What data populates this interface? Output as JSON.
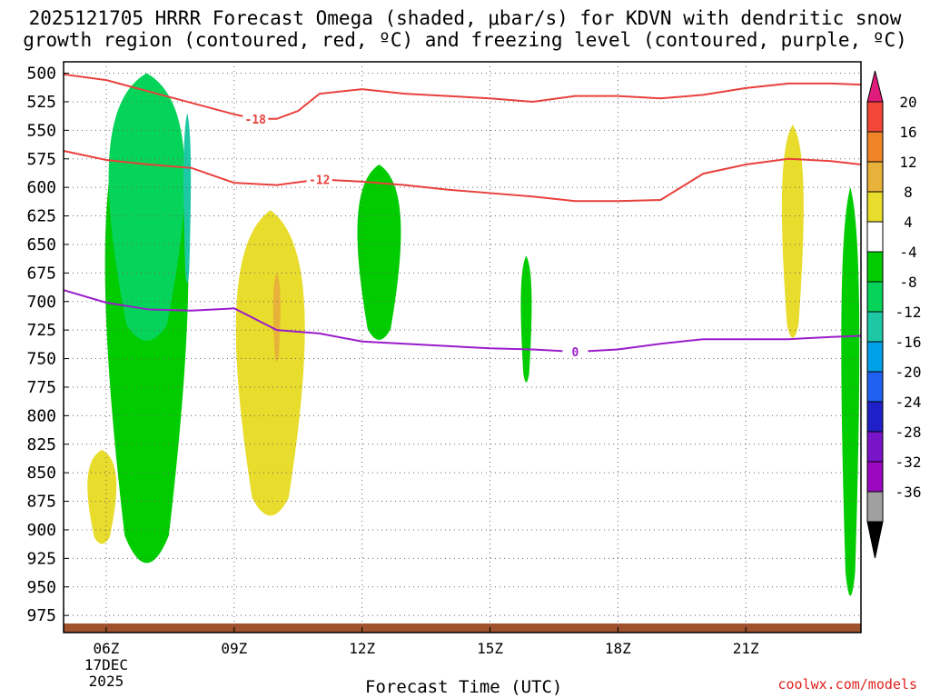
{
  "title_line1": "2025121705 HRRR Forecast Omega (shaded, μbar/s) for KDVN with dendritic snow",
  "title_line2": "growth region (contoured, red, ºC) and freezing level (contoured, purple, ºC)",
  "credit": "coolwx.com/models",
  "chart_data": {
    "type": "heatmap",
    "title": "2025121705 HRRR Forecast Omega (shaded, μbar/s) for KDVN with dendritic snow growth region (contoured, red, ºC) and freezing level (contoured, purple, ºC)",
    "xlabel": "Forecast Time (UTC)",
    "ylabel": "",
    "xlim_hours": [
      5,
      23.7
    ],
    "ylim_hPa": [
      990,
      490
    ],
    "x_ticks": [
      {
        "hour": 6,
        "label": "06Z",
        "sub1": "17DEC",
        "sub2": "2025"
      },
      {
        "hour": 9,
        "label": "09Z"
      },
      {
        "hour": 12,
        "label": "12Z"
      },
      {
        "hour": 15,
        "label": "15Z"
      },
      {
        "hour": 18,
        "label": "18Z"
      },
      {
        "hour": 21,
        "label": "21Z"
      }
    ],
    "y_ticks": [
      500,
      525,
      550,
      575,
      600,
      625,
      650,
      675,
      700,
      725,
      750,
      775,
      800,
      825,
      850,
      875,
      900,
      925,
      950,
      975
    ],
    "grid": true,
    "colorbar": {
      "ticks": [
        20,
        16,
        12,
        8,
        4,
        -4,
        -8,
        -12,
        -16,
        -20,
        -24,
        -28,
        -32,
        -36
      ],
      "colors": [
        "#df1c7c",
        "#f24638",
        "#ef8426",
        "#e8b23a",
        "#e8dc2c",
        "#ffffff",
        "#00cc00",
        "#06d45a",
        "#1ec8a6",
        "#00a0e8",
        "#2060f0",
        "#2020c8",
        "#7a14c8",
        "#9a08c0",
        "#a0a0a0",
        "#000000"
      ]
    },
    "red_contours": [
      {
        "label": "-18",
        "x": [
          5,
          6,
          7,
          8,
          9,
          9.5,
          10,
          10.5,
          11,
          12,
          13,
          14,
          15,
          16,
          17,
          18,
          19,
          20,
          21,
          22,
          23,
          23.7
        ],
        "y": [
          501,
          506,
          516,
          526,
          536,
          540,
          540,
          533,
          518,
          514,
          518,
          520,
          522,
          525,
          520,
          520,
          522,
          519,
          513,
          509,
          509,
          510
        ]
      },
      {
        "label": "-12",
        "x": [
          5,
          6,
          7,
          8,
          9,
          10,
          11,
          12,
          13,
          14,
          15,
          16,
          17,
          18,
          19,
          20,
          21,
          22,
          23,
          23.7
        ],
        "y": [
          568,
          576,
          580,
          583,
          596,
          598,
          593,
          595,
          598,
          602,
          605,
          608,
          612,
          612,
          611,
          588,
          580,
          575,
          577,
          580
        ]
      }
    ],
    "purple_contours": [
      {
        "label": "0",
        "x": [
          5,
          6,
          7,
          8,
          9,
          10,
          11,
          12,
          13,
          14,
          15,
          16,
          17,
          18,
          19,
          20,
          21,
          22,
          23,
          23.7
        ],
        "y": [
          690,
          701,
          707,
          708,
          706,
          725,
          728,
          735,
          737,
          739,
          741,
          742,
          744,
          742,
          737,
          733,
          733,
          733,
          731,
          730
        ]
      }
    ],
    "omega_regions": [
      {
        "class": "-4 to -8",
        "hour_min": 5.8,
        "hour_max": 8.1,
        "p_min": 500,
        "p_max": 950
      },
      {
        "class": "-8 to -12",
        "hour_min": 5.9,
        "hour_max": 8.0,
        "p_min": 500,
        "p_max": 745
      },
      {
        "class": "-12 to -16",
        "hour_min": 7.8,
        "hour_max": 8.0,
        "p_min": 535,
        "p_max": 690
      },
      {
        "class": "-4 to -8",
        "hour_min": 11.8,
        "hour_max": 13.0,
        "p_min": 580,
        "p_max": 740
      },
      {
        "class": "-4 to -8",
        "hour_min": 15.7,
        "hour_max": 16.0,
        "p_min": 660,
        "p_max": 775
      },
      {
        "class": "-4 to -8",
        "hour_min": 23.2,
        "hour_max": 23.7,
        "p_min": 600,
        "p_max": 975
      },
      {
        "class": "4 to 8",
        "hour_min": 8.9,
        "hour_max": 10.8,
        "p_min": 620,
        "p_max": 900
      },
      {
        "class": "8 to 12",
        "hour_min": 9.9,
        "hour_max": 10.1,
        "p_min": 675,
        "p_max": 755
      },
      {
        "class": "4 to 8",
        "hour_min": 5.5,
        "hour_max": 6.3,
        "p_min": 830,
        "p_max": 915
      },
      {
        "class": "4 to 8",
        "hour_min": 21.8,
        "hour_max": 22.4,
        "p_min": 545,
        "p_max": 740
      }
    ]
  }
}
